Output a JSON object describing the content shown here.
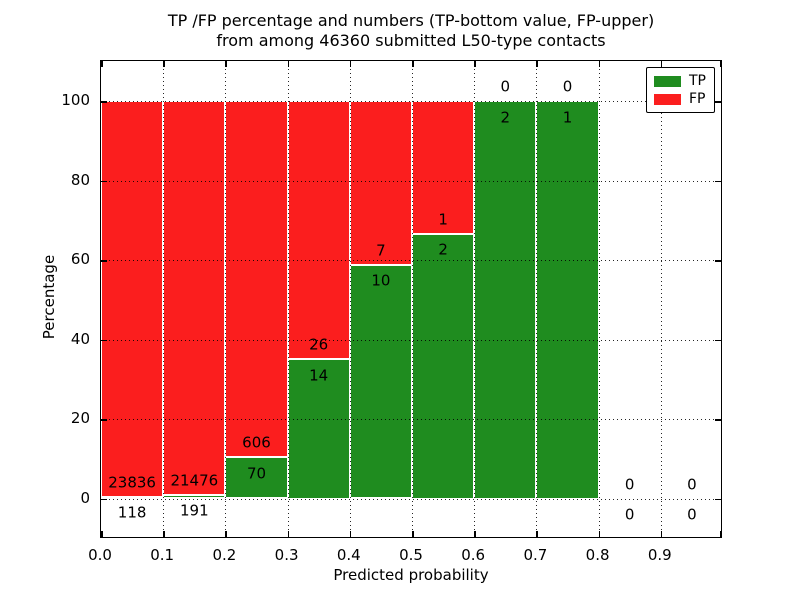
{
  "chart_data": {
    "type": "bar",
    "stacked": true,
    "title_line1": "TP /FP percentage and numbers (TP-bottom value, FP-upper)",
    "title_line2": "from among 46360 submitted L50-type contacts",
    "xlabel": "Predicted probability",
    "ylabel": "Percentage",
    "x_tick_labels": [
      "0.0",
      "0.1",
      "0.2",
      "0.3",
      "0.4",
      "0.5",
      "0.6",
      "0.7",
      "0.8",
      "0.9"
    ],
    "y_tick_values": [
      0,
      20,
      40,
      60,
      80,
      100
    ],
    "xlim": [
      0.0,
      1.0
    ],
    "ylim": [
      -11,
      110
    ],
    "grid": "dotted-black-both-axes",
    "legend": {
      "position": "upper-right",
      "entries": [
        {
          "label": "TP",
          "color": "#1f8c1f"
        },
        {
          "label": "FP",
          "color": "#fb1e1e"
        }
      ]
    },
    "bar_total_height_pct": 100,
    "bins": [
      {
        "range": [
          0.0,
          0.1
        ],
        "tp": 118,
        "fp": 23836,
        "tp_pct": 0.49
      },
      {
        "range": [
          0.1,
          0.2
        ],
        "tp": 191,
        "fp": 21476,
        "tp_pct": 0.88
      },
      {
        "range": [
          0.2,
          0.3
        ],
        "tp": 70,
        "fp": 606,
        "tp_pct": 10.36
      },
      {
        "range": [
          0.3,
          0.4
        ],
        "tp": 14,
        "fp": 26,
        "tp_pct": 35.0
      },
      {
        "range": [
          0.4,
          0.5
        ],
        "tp": 10,
        "fp": 7,
        "tp_pct": 58.82
      },
      {
        "range": [
          0.5,
          0.6
        ],
        "tp": 2,
        "fp": 1,
        "tp_pct": 66.67
      },
      {
        "range": [
          0.6,
          0.7
        ],
        "tp": 2,
        "fp": 0,
        "tp_pct": 100
      },
      {
        "range": [
          0.7,
          0.8
        ],
        "tp": 1,
        "fp": 0,
        "tp_pct": 100
      },
      {
        "range": [
          0.8,
          0.9
        ],
        "tp": 0,
        "fp": 0,
        "tp_pct": null
      },
      {
        "range": [
          0.9,
          1.0
        ],
        "tp": 0,
        "fp": 0,
        "tp_pct": null
      }
    ],
    "colors": {
      "tp_green": "#1f8c1f",
      "fp_red": "#fb1e1e",
      "frame": "#000000",
      "text": "#000000"
    }
  }
}
